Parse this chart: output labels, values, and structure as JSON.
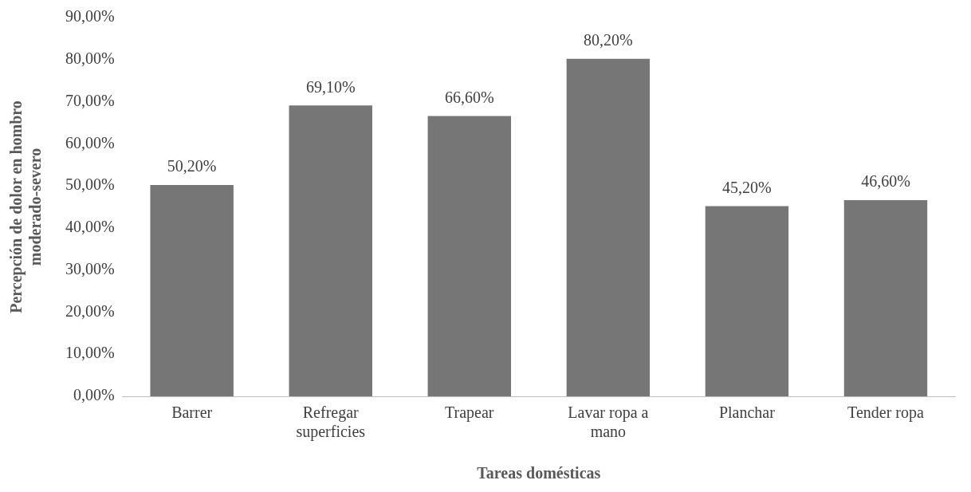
{
  "chart_data": {
    "type": "bar",
    "xlabel": "Tareas domésticas",
    "ylabel": "Percepción de dolor en hombro\nmoderado-severo",
    "categories": [
      "Barrer",
      "Refregar superficies",
      "Trapear",
      "Lavar ropa a mano",
      "Planchar",
      "Tender ropa"
    ],
    "values": [
      50.2,
      69.1,
      66.6,
      80.2,
      45.2,
      46.6
    ],
    "value_labels": [
      "50,20%",
      "69,10%",
      "66,60%",
      "80,20%",
      "45,20%",
      "46,60%"
    ],
    "color": "#767676",
    "ylim": [
      0,
      90
    ],
    "yticks": [
      {
        "value": 0,
        "label": "0,00%"
      },
      {
        "value": 10,
        "label": "10,00%"
      },
      {
        "value": 20,
        "label": "20,00%"
      },
      {
        "value": 30,
        "label": "30,00%"
      },
      {
        "value": 40,
        "label": "40,00%"
      },
      {
        "value": 50,
        "label": "50,00%"
      },
      {
        "value": 60,
        "label": "60,00%"
      },
      {
        "value": 70,
        "label": "70,00%"
      },
      {
        "value": 80,
        "label": "80,00%"
      },
      {
        "value": 90,
        "label": "90,00%"
      }
    ],
    "grid": false,
    "legend": false
  }
}
